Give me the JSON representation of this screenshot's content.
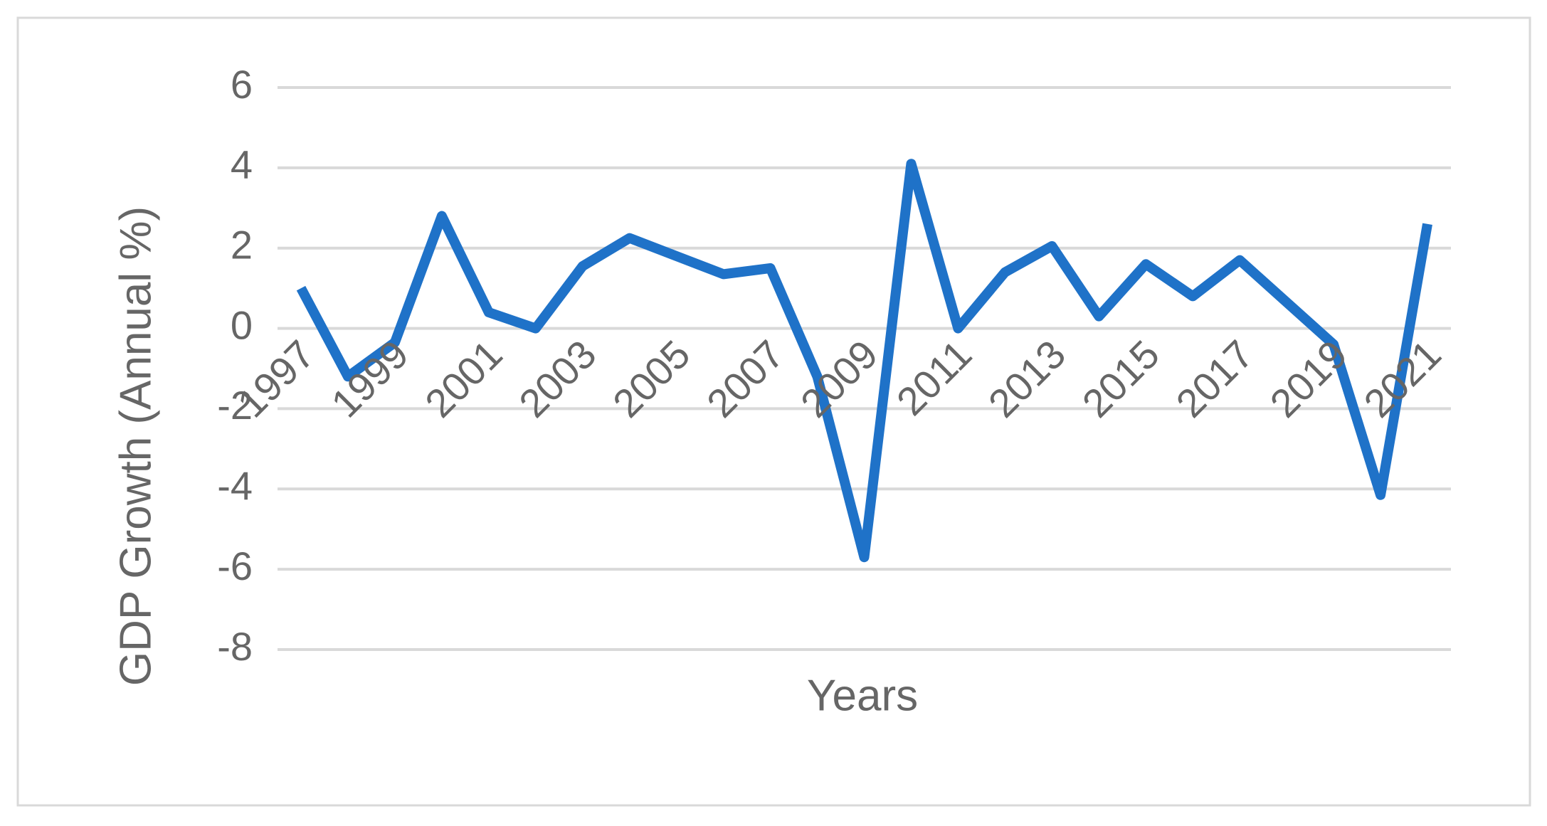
{
  "chart_data": {
    "type": "line",
    "x_label": "Years",
    "y_label": "GDP Growth (Annual %)",
    "categories": [
      "1997",
      null,
      "1999",
      null,
      "2001",
      null,
      "2003",
      null,
      "2005",
      null,
      "2007",
      null,
      "2009",
      null,
      "2011",
      null,
      "2013",
      null,
      "2015",
      null,
      "2017",
      null,
      "2019",
      null,
      "2021"
    ],
    "series": [
      {
        "name": "GDP Growth",
        "color": "#1f72c8",
        "values": [
          1.0,
          -1.2,
          -0.35,
          2.8,
          0.4,
          0.0,
          1.55,
          2.25,
          1.8,
          1.35,
          1.5,
          -1.2,
          -5.7,
          4.1,
          0.0,
          1.4,
          2.05,
          0.3,
          1.6,
          0.8,
          1.7,
          0.65,
          -0.4,
          -4.15,
          2.6
        ]
      }
    ],
    "ylim": [
      -8,
      6
    ],
    "yticks": [
      -8,
      -6,
      -4,
      -2,
      0,
      2,
      4,
      6
    ],
    "grid": true
  }
}
